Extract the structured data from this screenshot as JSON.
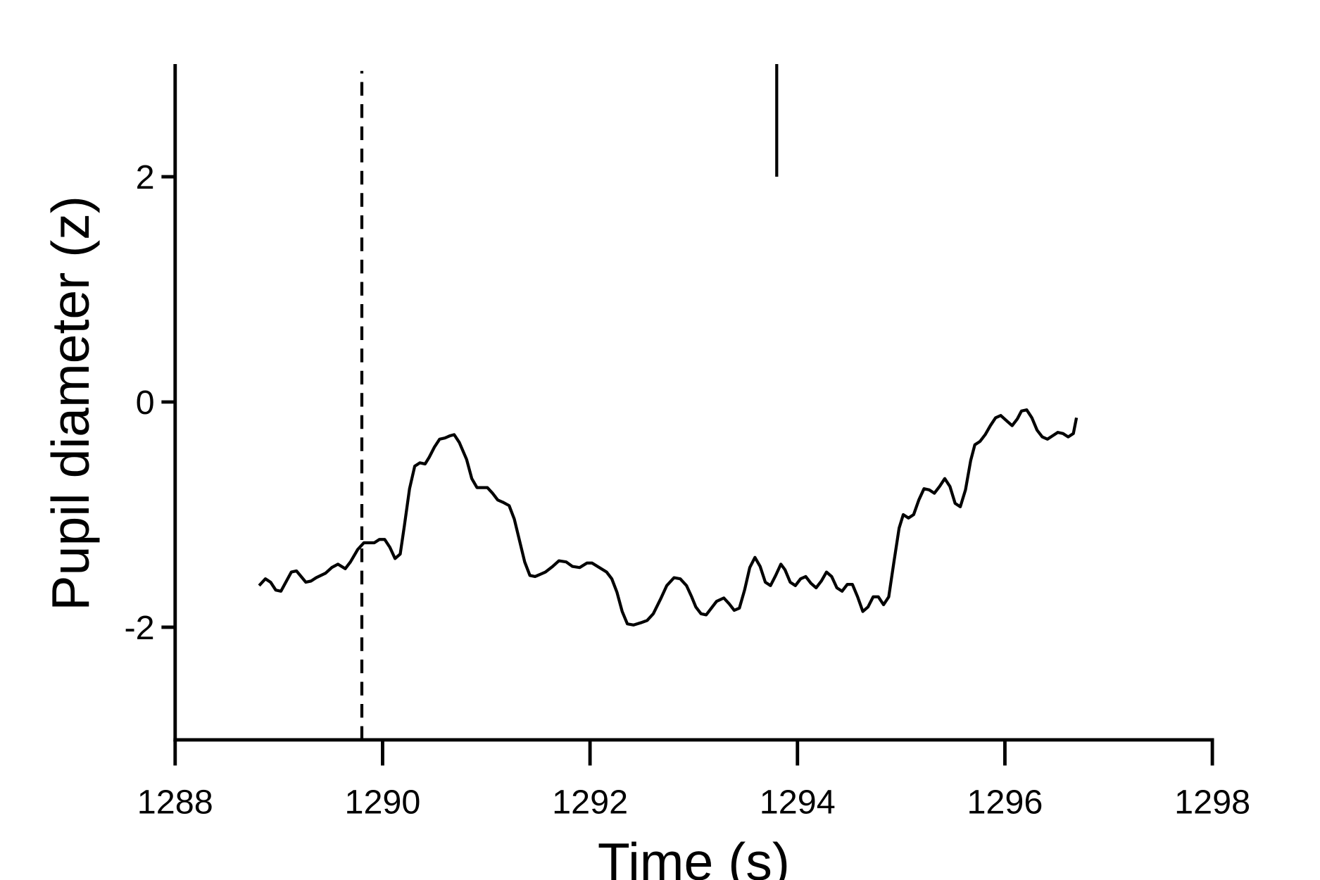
{
  "chart_data": {
    "type": "line",
    "xlabel": "Time (s)",
    "ylabel": "Pupil diameter (z)",
    "xlim": [
      1288,
      1298
    ],
    "xticks": [
      1288,
      1290,
      1292,
      1294,
      1296,
      1298
    ],
    "ylim": [
      -3,
      3
    ],
    "yticks": [
      -2,
      0,
      2
    ],
    "grid": false,
    "x": [
      1288.81,
      1288.87,
      1288.92,
      1288.97,
      1289.02,
      1289.12,
      1289.17,
      1289.26,
      1289.31,
      1289.36,
      1289.45,
      1289.51,
      1289.57,
      1289.64,
      1289.69,
      1289.76,
      1289.82,
      1289.87,
      1289.92,
      1289.97,
      1290.02,
      1290.07,
      1290.12,
      1290.17,
      1290.21,
      1290.26,
      1290.31,
      1290.36,
      1290.41,
      1290.45,
      1290.5,
      1290.55,
      1290.6,
      1290.65,
      1290.69,
      1290.74,
      1290.81,
      1290.86,
      1290.91,
      1290.96,
      1291.01,
      1291.06,
      1291.11,
      1291.16,
      1291.22,
      1291.27,
      1291.32,
      1291.37,
      1291.42,
      1291.47,
      1291.52,
      1291.57,
      1291.64,
      1291.7,
      1291.77,
      1291.83,
      1291.9,
      1291.97,
      1292.02,
      1292.09,
      1292.16,
      1292.21,
      1292.26,
      1292.31,
      1292.36,
      1292.42,
      1292.49,
      1292.55,
      1292.61,
      1292.68,
      1292.74,
      1292.81,
      1292.87,
      1292.93,
      1292.98,
      1293.02,
      1293.07,
      1293.12,
      1293.17,
      1293.22,
      1293.29,
      1293.34,
      1293.39,
      1293.44,
      1293.49,
      1293.54,
      1293.59,
      1293.64,
      1293.69,
      1293.74,
      1293.79,
      1293.84,
      1293.88,
      1293.93,
      1293.98,
      1294.03,
      1294.08,
      1294.13,
      1294.18,
      1294.23,
      1294.28,
      1294.33,
      1294.38,
      1294.43,
      1294.48,
      1294.53,
      1294.58,
      1294.63,
      1294.68,
      1294.73,
      1294.78,
      1294.83,
      1294.88,
      1294.93,
      1294.98,
      1295.02,
      1295.07,
      1295.12,
      1295.17,
      1295.22,
      1295.27,
      1295.32,
      1295.37,
      1295.42,
      1295.47,
      1295.52,
      1295.57,
      1295.62,
      1295.67,
      1295.71,
      1295.76,
      1295.81,
      1295.86,
      1295.91,
      1295.96,
      1296.02,
      1296.07,
      1296.12,
      1296.16,
      1296.21,
      1296.26,
      1296.31,
      1296.36,
      1296.41,
      1296.46,
      1296.51,
      1296.56,
      1296.61,
      1296.66,
      1296.69
    ],
    "series": [
      {
        "color": "#000000",
        "values": [
          -1.63,
          -1.57,
          -1.6,
          -1.67,
          -1.68,
          -1.51,
          -1.5,
          -1.6,
          -1.59,
          -1.56,
          -1.52,
          -1.47,
          -1.44,
          -1.48,
          -1.42,
          -1.31,
          -1.25,
          -1.25,
          -1.25,
          -1.22,
          -1.22,
          -1.29,
          -1.39,
          -1.35,
          -1.1,
          -0.77,
          -0.57,
          -0.54,
          -0.55,
          -0.49,
          -0.4,
          -0.33,
          -0.32,
          -0.3,
          -0.29,
          -0.36,
          -0.51,
          -0.68,
          -0.76,
          -0.76,
          -0.76,
          -0.81,
          -0.87,
          -0.89,
          -0.92,
          -1.04,
          -1.23,
          -1.42,
          -1.54,
          -1.55,
          -1.53,
          -1.51,
          -1.46,
          -1.41,
          -1.42,
          -1.46,
          -1.47,
          -1.43,
          -1.43,
          -1.47,
          -1.51,
          -1.57,
          -1.69,
          -1.86,
          -1.97,
          -1.98,
          -1.96,
          -1.94,
          -1.88,
          -1.75,
          -1.63,
          -1.56,
          -1.57,
          -1.63,
          -1.73,
          -1.82,
          -1.88,
          -1.89,
          -1.83,
          -1.77,
          -1.74,
          -1.79,
          -1.85,
          -1.83,
          -1.67,
          -1.47,
          -1.38,
          -1.46,
          -1.6,
          -1.63,
          -1.54,
          -1.44,
          -1.49,
          -1.6,
          -1.63,
          -1.57,
          -1.55,
          -1.61,
          -1.65,
          -1.59,
          -1.51,
          -1.55,
          -1.65,
          -1.68,
          -1.62,
          -1.62,
          -1.73,
          -1.86,
          -1.82,
          -1.73,
          -1.73,
          -1.8,
          -1.73,
          -1.42,
          -1.12,
          -1.0,
          -1.03,
          -1.0,
          -0.87,
          -0.77,
          -0.78,
          -0.81,
          -0.75,
          -0.68,
          -0.75,
          -0.9,
          -0.93,
          -0.78,
          -0.52,
          -0.38,
          -0.35,
          -0.29,
          -0.21,
          -0.14,
          -0.12,
          -0.17,
          -0.21,
          -0.15,
          -0.08,
          -0.07,
          -0.14,
          -0.25,
          -0.31,
          -0.33,
          -0.3,
          -0.27,
          -0.28,
          -0.31,
          -0.28,
          -0.14
        ]
      }
    ],
    "vlines": [
      {
        "x": 1289.8,
        "style": "dashed"
      }
    ],
    "event_mark": {
      "x": 1293.8,
      "ymin": 2,
      "ymax": 3
    }
  }
}
